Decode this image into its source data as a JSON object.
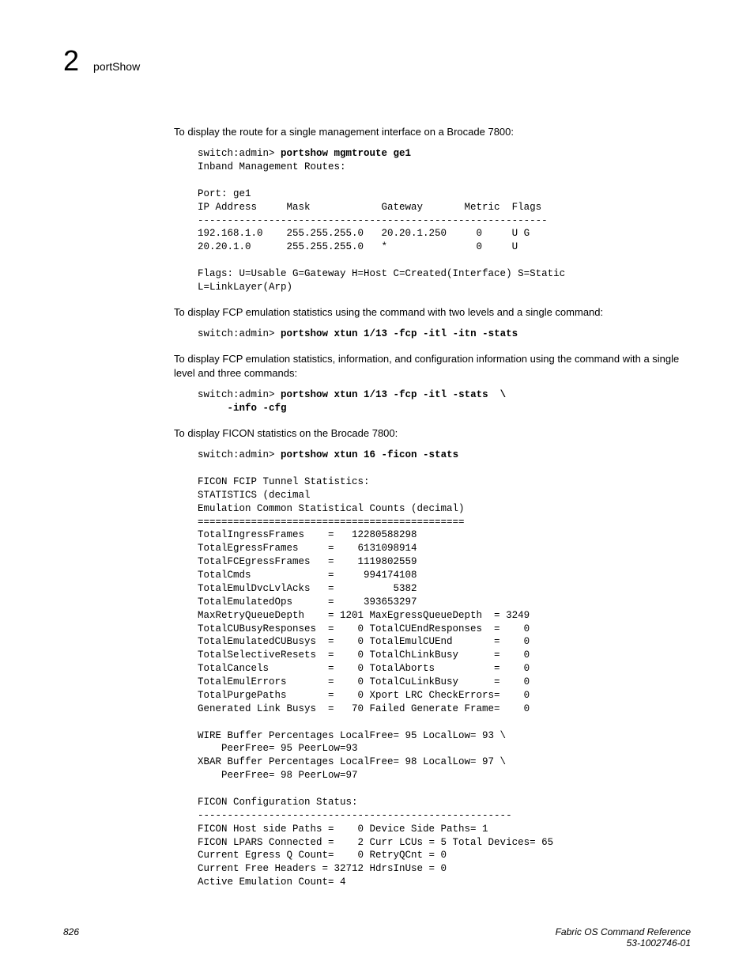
{
  "header": {
    "chapter_number": "2",
    "chapter_title": "portShow"
  },
  "intro1": "To display the route for a single management interface on a Brocade 7800:",
  "code1a_prompt": "switch:admin> ",
  "code1a_cmd": "portshow mgmtroute ge1",
  "code1a_rest": "\nInband Management Routes:\n\nPort: ge1\nIP Address     Mask            Gateway       Metric  Flags\n-----------------------------------------------------------\n192.168.1.0    255.255.255.0   20.20.1.250     0     U G\n20.20.1.0      255.255.255.0   *               0     U\n\nFlags: U=Usable G=Gateway H=Host C=Created(Interface) S=Static\nL=LinkLayer(Arp)",
  "intro2": "To display FCP emulation statistics using the command with two levels and a single command:",
  "code2_prompt": "switch:admin> ",
  "code2_cmd": "portshow xtun 1/13 -fcp -itl -itn -stats",
  "intro3": "To display FCP emulation statistics, information, and configuration information using the command with a single level and three commands:",
  "code3_prompt": "switch:admin> ",
  "code3_cmd_line1": "portshow xtun 1/13 -fcp -itl -stats  \\",
  "code3_cmd_line2": "     -info -cfg",
  "intro4": "To display FICON statistics on the Brocade 7800:",
  "code4_prompt": "switch:admin> ",
  "code4_cmd": "portshow xtun 16 -ficon -stats",
  "code4_rest": "\n\nFICON FCIP Tunnel Statistics:\nSTATISTICS (decimal\nEmulation Common Statistical Counts (decimal)\n=============================================\nTotalIngressFrames    =   12280588298\nTotalEgressFrames     =    6131098914\nTotalFCEgressFrames   =    1119802559\nTotalCmds             =     994174108\nTotalEmulDvcLvlAcks   =          5382\nTotalEmulatedOps      =     393653297\nMaxRetryQueueDepth    = 1201 MaxEgressQueueDepth  = 3249\nTotalCUBusyResponses  =    0 TotalCUEndResponses  =    0\nTotalEmulatedCUBusys  =    0 TotalEmulCUEnd       =    0\nTotalSelectiveResets  =    0 TotalChLinkBusy      =    0\nTotalCancels          =    0 TotalAborts          =    0\nTotalEmulErrors       =    0 TotalCuLinkBusy      =    0\nTotalPurgePaths       =    0 Xport LRC CheckErrors=    0\nGenerated Link Busys  =   70 Failed Generate Frame=    0\n\nWIRE Buffer Percentages LocalFree= 95 LocalLow= 93 \\\n    PeerFree= 95 PeerLow=93\nXBAR Buffer Percentages LocalFree= 98 LocalLow= 97 \\\n    PeerFree= 98 PeerLow=97\n\nFICON Configuration Status:\n-----------------------------------------------------\nFICON Host side Paths =    0 Device Side Paths= 1\nFICON LPARS Connected =    2 Curr LCUs = 5 Total Devices= 65\nCurrent Egress Q Count=    0 RetryQCnt = 0\nCurrent Free Headers = 32712 HdrsInUse = 0\nActive Emulation Count= 4",
  "footer": {
    "page_number": "826",
    "doc_title": "Fabric OS Command Reference",
    "doc_id": "53-1002746-01"
  }
}
